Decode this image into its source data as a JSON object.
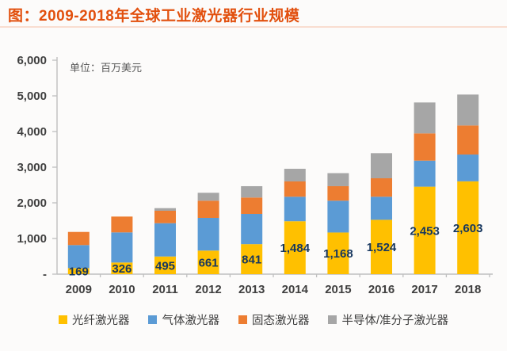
{
  "header": {
    "title": "图：2009-2018年全球工业激光器行业规模"
  },
  "chart_data": {
    "type": "bar",
    "stacked": true,
    "title": "图：2009-2018年全球工业激光器行业规模",
    "unit_label": "单位：百万美元",
    "categories": [
      "2009",
      "2010",
      "2011",
      "2012",
      "2013",
      "2014",
      "2015",
      "2016",
      "2017",
      "2018"
    ],
    "series": [
      {
        "name": "光纤激光器",
        "color": "#FFC000",
        "values": [
          169,
          326,
          495,
          661,
          841,
          1484,
          1168,
          1524,
          2453,
          2603
        ]
      },
      {
        "name": "气体激光器",
        "color": "#5B9BD5",
        "values": [
          646,
          845,
          934,
          917,
          848,
          687,
          892,
          647,
          731,
          752
        ]
      },
      {
        "name": "固态激光器",
        "color": "#ED7D31",
        "values": [
          369,
          444,
          349,
          482,
          460,
          429,
          407,
          518,
          764,
          815
        ]
      },
      {
        "name": "半导体/准分子激光器",
        "color": "#A6A6A6",
        "values": [
          0,
          0,
          73,
          222,
          318,
          355,
          366,
          704,
          867,
          867
        ]
      }
    ],
    "data_labels": [
      "169",
      "326",
      "495",
      "661",
      "841",
      "1,484",
      "1,168",
      "1,524",
      "2,453",
      "2,603"
    ],
    "data_labels_series": "光纤激光器",
    "y_ticks": [
      "6,000",
      "5,000",
      "4,000",
      "3,000",
      "2,000",
      "1,000",
      "-"
    ],
    "ylim": [
      0,
      6000
    ],
    "grid": false,
    "legend_position": "bottom"
  },
  "colors": {
    "title": "#E2500E",
    "axis": "#BFBFBF",
    "tick_label": "#3F3F3F",
    "unit_label": "#595959",
    "data_label": "#17375E",
    "background": "#FCFBFA"
  }
}
